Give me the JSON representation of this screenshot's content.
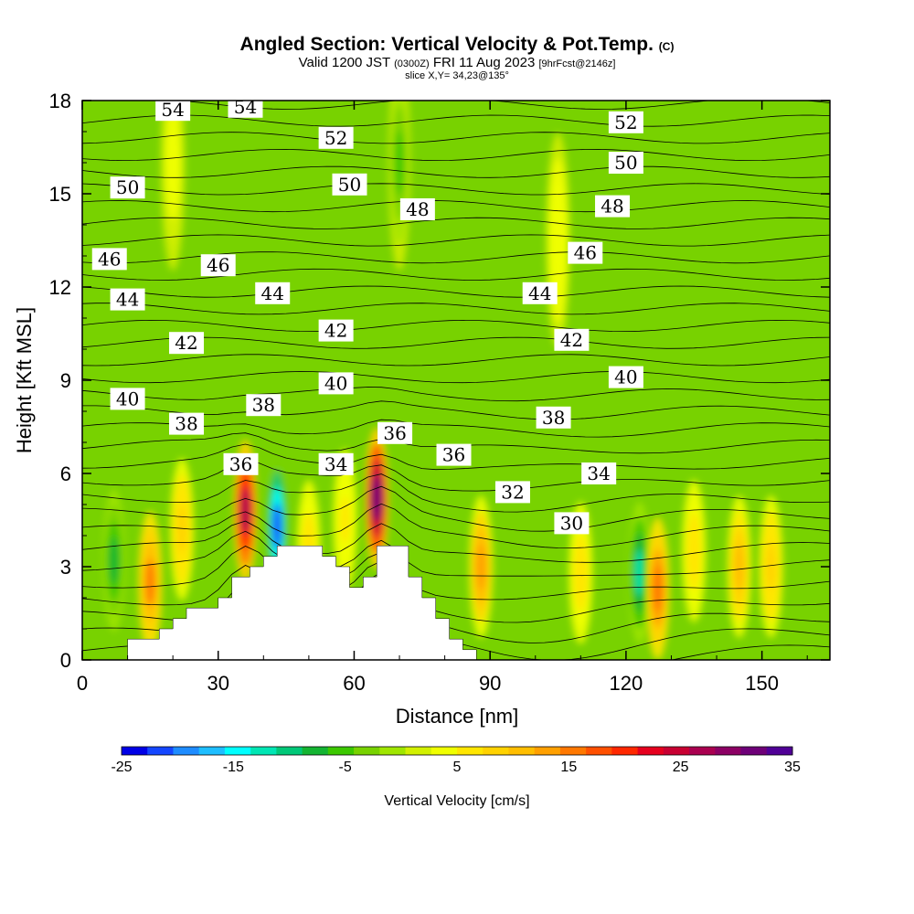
{
  "title": {
    "main": "Angled Section: Vertical Velocity & Pot.Temp.",
    "copyright": "(C)",
    "valid_prefix": "Valid 1200 JST",
    "valid_utc": "(0300Z)",
    "valid_date": "FRI 11 Aug 2023",
    "forecast": "[9hrFcst@2146z]",
    "slice": "slice X,Y= 34,23@135°"
  },
  "chart_data": {
    "type": "heatmap",
    "xlabel": "Distance [nm]",
    "ylabel": "Height [Kft MSL]",
    "xlim": [
      0,
      165
    ],
    "ylim": [
      0,
      18
    ],
    "xticks": [
      "0",
      "30",
      "60",
      "90",
      "120",
      "150"
    ],
    "yticks": [
      "0",
      "3",
      "6",
      "9",
      "12",
      "15",
      "18"
    ],
    "colorbar": {
      "label": "Vertical Velocity [cm/s]",
      "range": [
        -25,
        35
      ],
      "tick_labels": [
        "-25",
        "-15",
        "-5",
        "5",
        "15",
        "25",
        "35"
      ],
      "colors": [
        "#0000e6",
        "#1446ff",
        "#1e8cff",
        "#1ebeff",
        "#00ffff",
        "#00e6b4",
        "#00c878",
        "#14b432",
        "#3cc800",
        "#78d200",
        "#a0e600",
        "#d2f000",
        "#f0ff00",
        "#ffe600",
        "#ffd200",
        "#ffbe00",
        "#ffa000",
        "#ff7800",
        "#ff5000",
        "#ff2800",
        "#e6001e",
        "#c80032",
        "#aa0050",
        "#8c0064",
        "#6e0078",
        "#500096"
      ]
    },
    "terrain_profile": {
      "x": [
        0,
        10,
        10,
        17,
        17,
        20,
        20,
        23,
        23,
        30,
        30,
        33,
        33,
        37,
        37,
        40,
        40,
        43,
        43,
        53,
        53,
        56,
        56,
        59,
        59,
        62,
        62,
        65,
        65,
        72,
        72,
        75,
        75,
        78,
        78,
        81,
        81,
        84,
        84,
        87,
        87
      ],
      "y": [
        0,
        0,
        0.67,
        0.67,
        1.0,
        1.0,
        1.33,
        1.33,
        1.67,
        1.67,
        2.0,
        2.0,
        2.67,
        2.67,
        3.0,
        3.0,
        3.33,
        3.33,
        3.67,
        3.67,
        3.33,
        3.33,
        3.0,
        3.0,
        2.33,
        2.33,
        2.67,
        2.67,
        3.67,
        3.67,
        2.67,
        2.67,
        2.0,
        2.0,
        1.33,
        1.33,
        0.67,
        0.67,
        0.33,
        0.33,
        0
      ]
    },
    "velocity_cells": [
      {
        "x": 7,
        "y": 3.2,
        "value": -8
      },
      {
        "x": 15,
        "y": 2.5,
        "value": 15
      },
      {
        "x": 22,
        "y": 4.2,
        "value": 8
      },
      {
        "x": 36,
        "y": 4.8,
        "value": 28
      },
      {
        "x": 43,
        "y": 4.3,
        "value": -22
      },
      {
        "x": 50,
        "y": 3.5,
        "value": 6
      },
      {
        "x": 58,
        "y": 4.5,
        "value": 5
      },
      {
        "x": 65,
        "y": 5.2,
        "value": 33
      },
      {
        "x": 88,
        "y": 3.0,
        "value": 13
      },
      {
        "x": 110,
        "y": 2.8,
        "value": 6
      },
      {
        "x": 123,
        "y": 2.8,
        "value": -12
      },
      {
        "x": 127,
        "y": 2.3,
        "value": 16
      },
      {
        "x": 135,
        "y": 3.5,
        "value": 6
      },
      {
        "x": 145,
        "y": 3.0,
        "value": 10
      },
      {
        "x": 152,
        "y": 3.0,
        "value": 8
      },
      {
        "x": 105,
        "y": 13.5,
        "value": 4
      },
      {
        "x": 70,
        "y": 16,
        "value": -5
      },
      {
        "x": 20,
        "y": 16,
        "value": 3
      }
    ],
    "theta_labels": [
      {
        "text": "54",
        "x": 20,
        "y": 17.7
      },
      {
        "text": "54",
        "x": 36,
        "y": 17.8
      },
      {
        "text": "52",
        "x": 56,
        "y": 16.8
      },
      {
        "text": "52",
        "x": 120,
        "y": 17.3
      },
      {
        "text": "50",
        "x": 10,
        "y": 15.2
      },
      {
        "text": "50",
        "x": 59,
        "y": 15.3
      },
      {
        "text": "50",
        "x": 120,
        "y": 16.0
      },
      {
        "text": "48",
        "x": 74,
        "y": 14.5
      },
      {
        "text": "48",
        "x": 117,
        "y": 14.6
      },
      {
        "text": "46",
        "x": 6,
        "y": 12.9
      },
      {
        "text": "46",
        "x": 30,
        "y": 12.7
      },
      {
        "text": "46",
        "x": 111,
        "y": 13.1
      },
      {
        "text": "44",
        "x": 10,
        "y": 11.6
      },
      {
        "text": "44",
        "x": 42,
        "y": 11.8
      },
      {
        "text": "44",
        "x": 101,
        "y": 11.8
      },
      {
        "text": "42",
        "x": 23,
        "y": 10.2
      },
      {
        "text": "42",
        "x": 56,
        "y": 10.6
      },
      {
        "text": "42",
        "x": 108,
        "y": 10.3
      },
      {
        "text": "40",
        "x": 10,
        "y": 8.4
      },
      {
        "text": "40",
        "x": 56,
        "y": 8.9
      },
      {
        "text": "40",
        "x": 120,
        "y": 9.1
      },
      {
        "text": "38",
        "x": 23,
        "y": 7.6
      },
      {
        "text": "38",
        "x": 40,
        "y": 8.2
      },
      {
        "text": "38",
        "x": 104,
        "y": 7.8
      },
      {
        "text": "36",
        "x": 35,
        "y": 6.3
      },
      {
        "text": "36",
        "x": 69,
        "y": 7.3
      },
      {
        "text": "36",
        "x": 82,
        "y": 6.6
      },
      {
        "text": "34",
        "x": 56,
        "y": 6.3
      },
      {
        "text": "34",
        "x": 114,
        "y": 6.0
      },
      {
        "text": "32",
        "x": 95,
        "y": 5.4
      },
      {
        "text": "30",
        "x": 108,
        "y": 4.4
      }
    ]
  }
}
